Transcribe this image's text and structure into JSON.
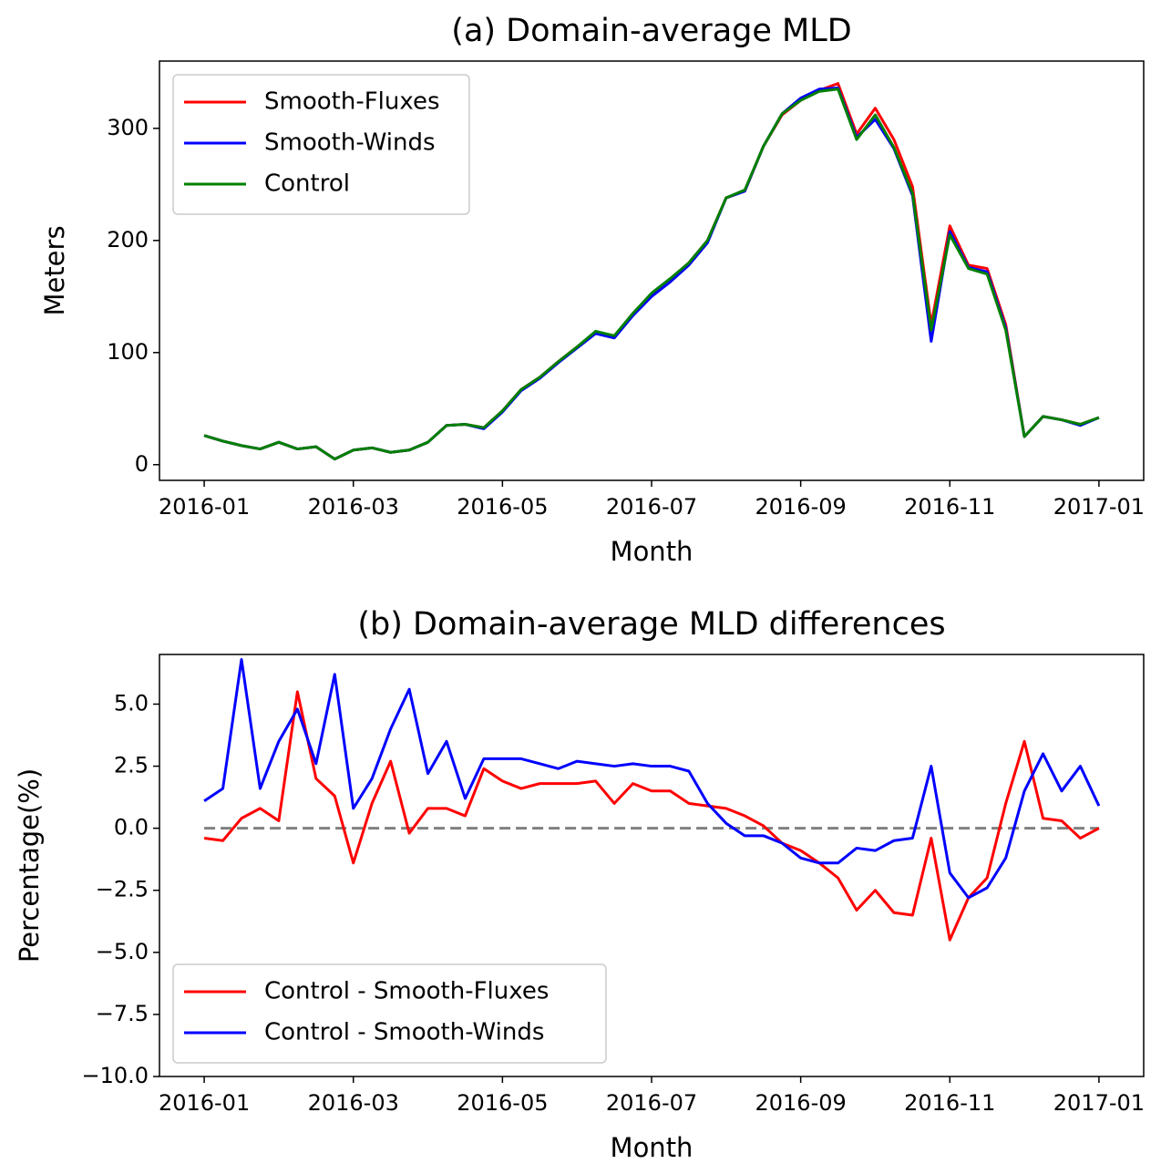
{
  "chart_data": [
    {
      "type": "line",
      "title": "(a) Domain-average MLD",
      "x_label": "Month",
      "y_label": "Meters",
      "x": [
        0,
        0.25,
        0.5,
        0.75,
        1,
        1.25,
        1.5,
        1.75,
        2,
        2.25,
        2.5,
        2.75,
        3,
        3.25,
        3.5,
        3.75,
        4,
        4.25,
        4.5,
        4.75,
        5,
        5.25,
        5.5,
        5.75,
        6,
        6.25,
        6.5,
        6.75,
        7,
        7.25,
        7.5,
        7.75,
        8,
        8.25,
        8.5,
        8.75,
        9,
        9.25,
        9.5,
        9.75,
        10,
        10.25,
        10.5,
        10.75,
        11,
        11.25,
        11.5,
        11.75,
        12
      ],
      "series": [
        {
          "name": "Smooth-Fluxes",
          "color": "#ff0000",
          "values": [
            26,
            21,
            17,
            14,
            20,
            14,
            16,
            5,
            13,
            15,
            11,
            13,
            20,
            35,
            36,
            33,
            48,
            67,
            78,
            92,
            105,
            118,
            114,
            135,
            152,
            165,
            180,
            200,
            238,
            244,
            284,
            312,
            325,
            334,
            340,
            295,
            318,
            290,
            248,
            125,
            213,
            178,
            175,
            125,
            25,
            43,
            40,
            36,
            42
          ]
        },
        {
          "name": "Smooth-Winds",
          "color": "#0000ff",
          "values": [
            26,
            21,
            17,
            14,
            20,
            14,
            16,
            5,
            13,
            15,
            11,
            13,
            20,
            35,
            36,
            32,
            47,
            66,
            77,
            91,
            104,
            117,
            113,
            133,
            150,
            163,
            178,
            198,
            238,
            244,
            284,
            313,
            327,
            335,
            336,
            292,
            308,
            282,
            240,
            110,
            208,
            176,
            172,
            122,
            25,
            43,
            40,
            35,
            42
          ]
        },
        {
          "name": "Control",
          "color": "#008000",
          "values": [
            26,
            21,
            17,
            14,
            20,
            14,
            16,
            5,
            13,
            15,
            11,
            13,
            20,
            35,
            36,
            33,
            48,
            67,
            78,
            92,
            105,
            119,
            115,
            135,
            153,
            166,
            180,
            200,
            238,
            245,
            284,
            313,
            325,
            333,
            335,
            290,
            312,
            283,
            242,
            120,
            205,
            175,
            170,
            120,
            25,
            43,
            40,
            36,
            42
          ]
        }
      ],
      "xlim": [
        -0.6,
        12.6
      ],
      "xticks": [
        {
          "value": 0,
          "label": "2016-01"
        },
        {
          "value": 2,
          "label": "2016-03"
        },
        {
          "value": 4,
          "label": "2016-05"
        },
        {
          "value": 6,
          "label": "2016-07"
        },
        {
          "value": 8,
          "label": "2016-09"
        },
        {
          "value": 10,
          "label": "2016-11"
        },
        {
          "value": 12,
          "label": "2017-01"
        }
      ],
      "ylim": [
        -14,
        360
      ],
      "yticks": [
        0,
        100,
        200,
        300
      ],
      "legend": "upper left",
      "grid": false
    },
    {
      "type": "line",
      "title": "(b) Domain-average MLD differences",
      "x_label": "Month",
      "y_label": "Percentage(%)",
      "x": [
        0,
        0.25,
        0.5,
        0.75,
        1,
        1.25,
        1.5,
        1.75,
        2,
        2.25,
        2.5,
        2.75,
        3,
        3.25,
        3.5,
        3.75,
        4,
        4.25,
        4.5,
        4.75,
        5,
        5.25,
        5.5,
        5.75,
        6,
        6.25,
        6.5,
        6.75,
        7,
        7.25,
        7.5,
        7.75,
        8,
        8.25,
        8.5,
        8.75,
        9,
        9.25,
        9.5,
        9.75,
        10,
        10.25,
        10.5,
        10.75,
        11,
        11.25,
        11.5,
        11.75,
        12
      ],
      "series": [
        {
          "name": "Control - Smooth-Fluxes",
          "color": "#ff0000",
          "values": [
            -0.4,
            -0.5,
            0.4,
            0.8,
            0.3,
            5.5,
            2.0,
            1.3,
            -1.4,
            1.0,
            2.7,
            -0.2,
            0.8,
            0.8,
            0.5,
            2.4,
            1.9,
            1.6,
            1.8,
            1.8,
            1.8,
            1.9,
            1.0,
            1.8,
            1.5,
            1.5,
            1.0,
            0.9,
            0.8,
            0.5,
            0.1,
            -0.6,
            -0.9,
            -1.4,
            -2.0,
            -3.3,
            -2.5,
            -3.4,
            -3.5,
            -0.4,
            -4.5,
            -2.8,
            -2.0,
            1.0,
            3.5,
            0.4,
            0.3,
            -0.4,
            0.0
          ]
        },
        {
          "name": "Control - Smooth-Winds",
          "color": "#0000ff",
          "values": [
            1.1,
            1.6,
            6.8,
            1.6,
            3.5,
            4.8,
            2.6,
            6.2,
            0.8,
            2.0,
            4.0,
            5.6,
            2.2,
            3.5,
            1.2,
            2.8,
            2.8,
            2.8,
            2.6,
            2.4,
            2.7,
            2.6,
            2.5,
            2.6,
            2.5,
            2.5,
            2.3,
            1.0,
            0.2,
            -0.3,
            -0.3,
            -0.6,
            -1.2,
            -1.4,
            -1.4,
            -0.8,
            -0.9,
            -0.5,
            -0.4,
            2.5,
            -1.8,
            -2.8,
            -2.4,
            -1.2,
            1.5,
            3.0,
            1.5,
            2.5,
            0.9
          ]
        }
      ],
      "hline": 0,
      "hline_color": "#808080",
      "xlim": [
        -0.6,
        12.6
      ],
      "xticks": [
        {
          "value": 0,
          "label": "2016-01"
        },
        {
          "value": 2,
          "label": "2016-03"
        },
        {
          "value": 4,
          "label": "2016-05"
        },
        {
          "value": 6,
          "label": "2016-07"
        },
        {
          "value": 8,
          "label": "2016-09"
        },
        {
          "value": 10,
          "label": "2016-11"
        },
        {
          "value": 12,
          "label": "2017-01"
        }
      ],
      "ylim": [
        -10,
        7
      ],
      "yticks": [
        {
          "value": -10,
          "label": "−10.0"
        },
        {
          "value": -7.5,
          "label": "−7.5"
        },
        {
          "value": -5,
          "label": "−5.0"
        },
        {
          "value": -2.5,
          "label": "−2.5"
        },
        {
          "value": 0,
          "label": "0.0"
        },
        2.5,
        {
          "value": 5,
          "label": "5.0"
        }
      ],
      "legend": "lower left",
      "grid": false
    }
  ]
}
